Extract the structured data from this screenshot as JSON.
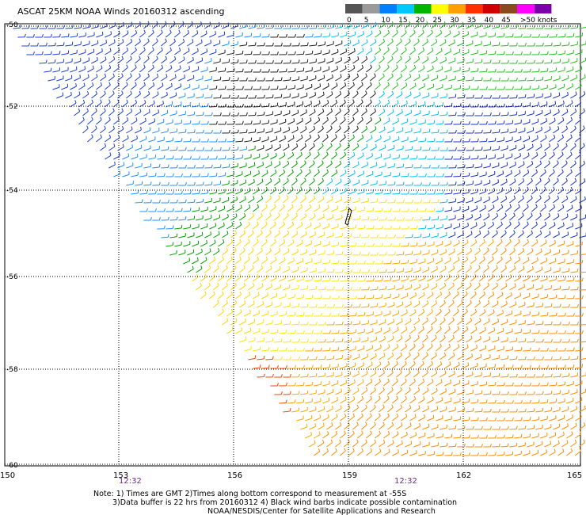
{
  "title": "ASCAT 25KM NOAA Winds 20160312 ascending",
  "legend": {
    "colors": [
      "#555555",
      "#9a9a9a",
      "#0080ff",
      "#00c8ff",
      "#00b400",
      "#ffff00",
      "#ffa000",
      "#ff3000",
      "#d00000",
      "#8b4a1e",
      "#ff00ff",
      "#7a00a8"
    ],
    "labels": [
      "0",
      "5",
      "10",
      "15",
      "20",
      "25",
      "30",
      "35",
      "40",
      "45"
    ],
    "end_label": ">50 knots"
  },
  "lat_labels": [
    "-50",
    "-52",
    "-54",
    "-56",
    "-58",
    "-60"
  ],
  "lon_labels": [
    "150",
    "153",
    "156",
    "159",
    "162",
    "165"
  ],
  "time_labels": [
    "12:32",
    "12:32"
  ],
  "notes": [
    "Note: 1) Times are GMT 2)Times along bottom correspond to measurement at -55S",
    "3)Data buffer is 22 hrs from 20160312 4) Black wind barbs indicate possible contamination",
    "NOAA/NESDIS/Center for Satellite Applications and Research"
  ]
}
